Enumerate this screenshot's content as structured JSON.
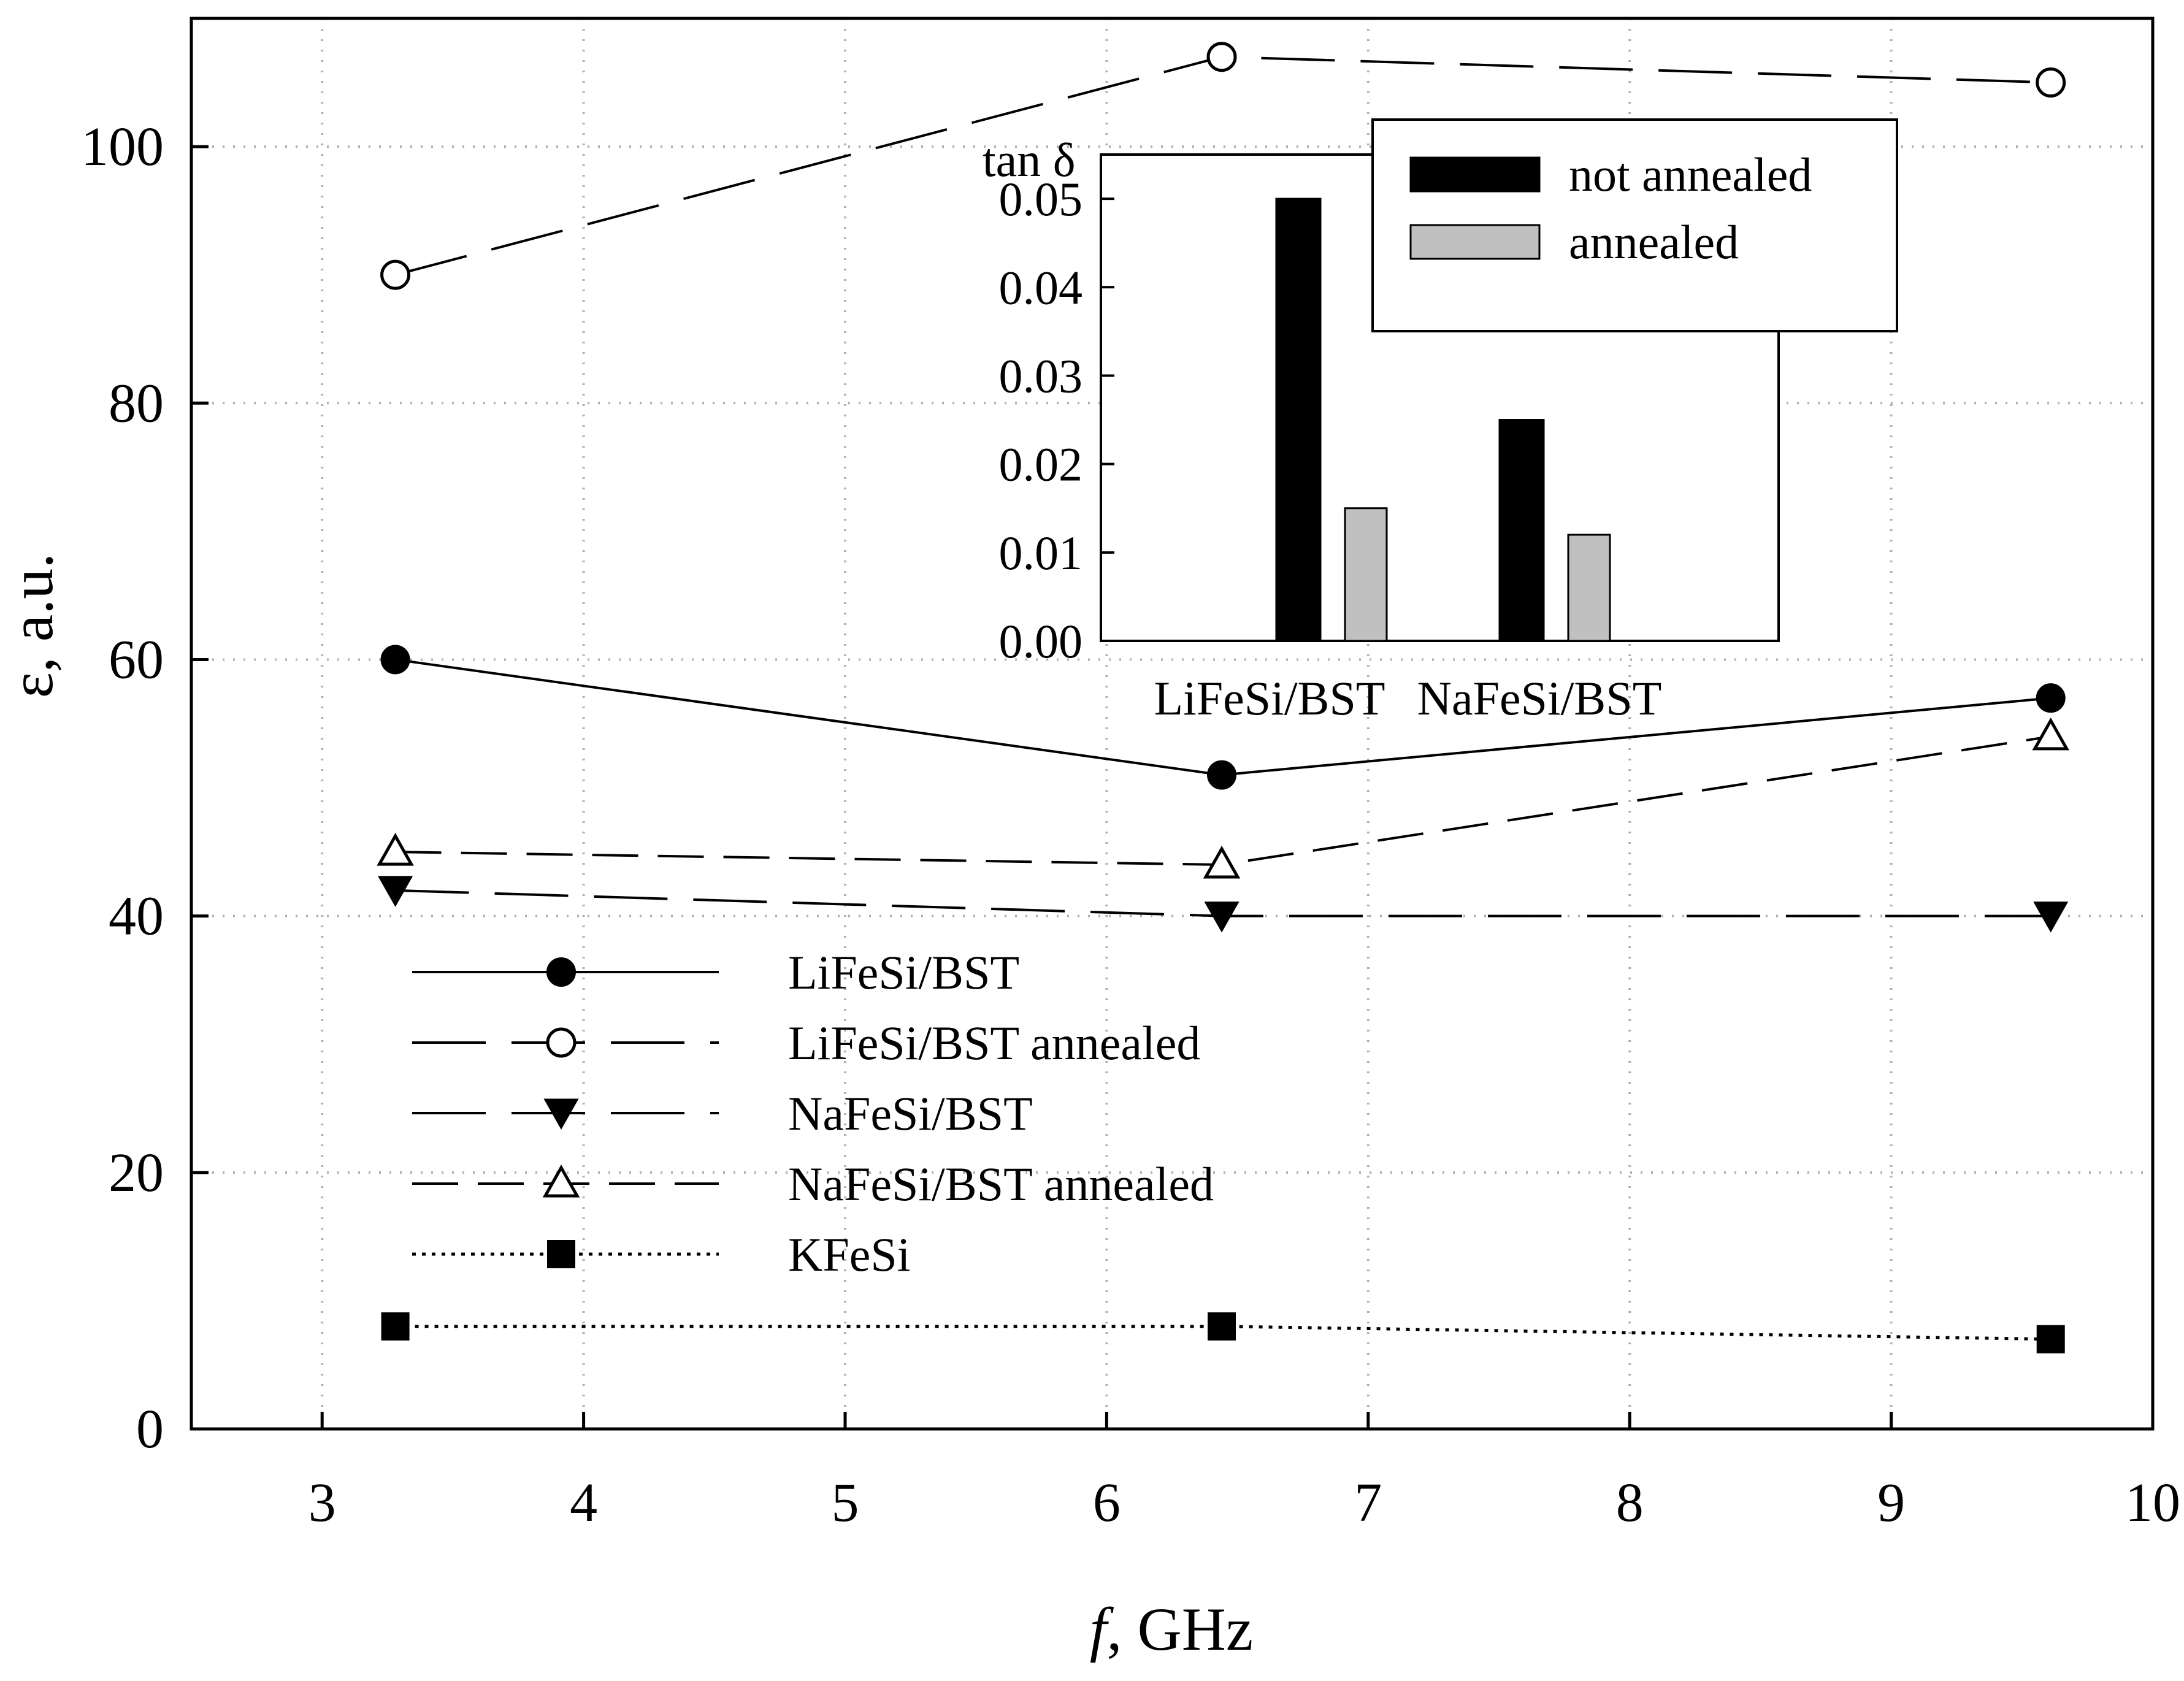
{
  "chart_data": [
    {
      "type": "line",
      "title": "",
      "xlabel_italic": "f",
      "xlabel_rest": ", GHz",
      "ylabel": "ε, a.u.",
      "xlim": [
        2.5,
        10
      ],
      "ylim": [
        0,
        110
      ],
      "xticks": [
        "3",
        "4",
        "5",
        "6",
        "7",
        "8",
        "9",
        "10"
      ],
      "yticks": [
        "0",
        "20",
        "40",
        "60",
        "80",
        "100"
      ],
      "grid": true,
      "legend_position": "bottom-left",
      "x": [
        3.28,
        6.44,
        9.61
      ],
      "series": [
        {
          "name": "LiFeSi/BST",
          "marker": "filled-circle",
          "line": "solid",
          "values": [
            60,
            51,
            57
          ]
        },
        {
          "name": "LiFeSi/BST annealed",
          "marker": "open-circle",
          "line": "long-dash",
          "values": [
            90,
            107,
            105
          ]
        },
        {
          "name": "NaFeSi/BST",
          "marker": "filled-triangle-down",
          "line": "long-dash",
          "values": [
            42,
            40,
            40
          ]
        },
        {
          "name": "NaFeSi/BST annealed",
          "marker": "open-triangle-up",
          "line": "medium-dash",
          "values": [
            45,
            44,
            54
          ]
        },
        {
          "name": "KFeSi",
          "marker": "filled-square",
          "line": "dotted",
          "values": [
            8,
            8,
            7
          ]
        }
      ]
    },
    {
      "type": "bar",
      "title": "",
      "ylabel": "tan δ",
      "ylim": [
        0,
        0.055
      ],
      "yticks": [
        "0.00",
        "0.01",
        "0.02",
        "0.03",
        "0.04",
        "0.05"
      ],
      "categories": [
        "LiFeSi/BST",
        "NaFeSi/BST"
      ],
      "legend_position": "top-right",
      "series": [
        {
          "name": "not annealed",
          "color": "#000000",
          "values": [
            0.05,
            0.025
          ]
        },
        {
          "name": "annealed",
          "color": "#c0c0c0",
          "values": [
            0.015,
            0.012
          ]
        }
      ]
    }
  ]
}
